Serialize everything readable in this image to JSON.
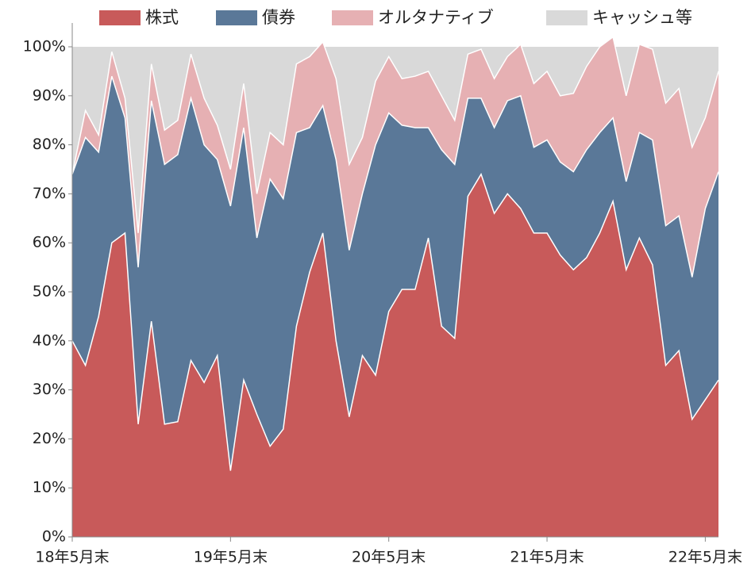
{
  "chart_data": {
    "type": "stacked_area",
    "categories": [
      "18年5月末",
      null,
      null,
      null,
      null,
      null,
      null,
      null,
      null,
      null,
      null,
      null,
      "19年5月末",
      null,
      null,
      null,
      null,
      null,
      null,
      null,
      null,
      null,
      null,
      null,
      "20年5月末",
      null,
      null,
      null,
      null,
      null,
      null,
      null,
      null,
      null,
      null,
      null,
      "21年5月末",
      null,
      null,
      null,
      null,
      null,
      null,
      null,
      null,
      null,
      null,
      null,
      "22年5月末",
      null
    ],
    "series": [
      {
        "name": "株式",
        "color": "#c85a5a",
        "values": [
          40,
          35,
          45,
          60,
          62,
          23,
          44,
          23,
          23.5,
          36,
          31.5,
          37,
          13.5,
          32,
          25,
          18.5,
          22,
          43,
          54,
          62,
          40,
          24.5,
          37,
          33,
          46,
          50.5,
          50.5,
          61,
          43,
          40.5,
          69.5,
          74,
          66,
          70,
          67,
          62,
          62,
          57.5,
          54.5,
          57,
          62,
          68.5,
          54.5,
          61,
          55.5,
          35,
          38,
          24,
          28,
          32
        ]
      },
      {
        "name": "債券",
        "color": "#5a7898",
        "values": [
          34,
          46.5,
          33.5,
          34,
          23.5,
          32,
          45,
          53,
          54.5,
          53.5,
          48.5,
          40,
          54,
          51.5,
          36,
          54.5,
          47,
          39.5,
          29.5,
          26,
          37,
          34,
          33,
          47,
          40.5,
          33.5,
          33,
          22.5,
          36,
          35.5,
          20,
          15.5,
          17.5,
          19,
          23,
          17.5,
          19,
          19,
          20,
          22,
          20.5,
          17,
          18,
          21.5,
          25.5,
          28.5,
          27.5,
          29,
          39,
          42.5
        ]
      },
      {
        "name": "オルタナティブ",
        "color": "#e6b0b3",
        "values": [
          0,
          5.5,
          3.5,
          5,
          4,
          7,
          7.5,
          7,
          7,
          9,
          9.5,
          7,
          7.5,
          9,
          9,
          9.5,
          11,
          14,
          14.5,
          13,
          16.5,
          17.5,
          11.5,
          13,
          11.5,
          9.5,
          10.5,
          11.5,
          11,
          9,
          9,
          10,
          10,
          9,
          10.5,
          13,
          14,
          13.5,
          16,
          17,
          17.5,
          16.5,
          17.5,
          18,
          18.5,
          25,
          26,
          26.5,
          18.5,
          20.5
        ]
      },
      {
        "name": "キャッシュ等",
        "color": "#d9d9d9",
        "values": [
          26,
          13,
          18,
          1,
          10.5,
          38,
          3.5,
          17,
          15,
          1.5,
          10.5,
          16,
          25,
          7.5,
          30,
          17.5,
          20,
          3.5,
          2,
          -1,
          6.5,
          24,
          18.5,
          7,
          2,
          6.5,
          6,
          5,
          10,
          15,
          1.5,
          0.5,
          6.5,
          2,
          -0.5,
          7.5,
          5,
          10,
          9.5,
          4,
          0,
          -2,
          10,
          -0.5,
          0.5,
          11.5,
          8.5,
          20.5,
          14.5,
          5
        ]
      }
    ],
    "ylim": [
      0,
      100
    ],
    "yticks": [
      {
        "value": 0,
        "label": "0%"
      },
      {
        "value": 10,
        "label": "10%"
      },
      {
        "value": 20,
        "label": "20%"
      },
      {
        "value": 30,
        "label": "30%"
      },
      {
        "value": 40,
        "label": "40%"
      },
      {
        "value": 50,
        "label": "50%"
      },
      {
        "value": 60,
        "label": "60%"
      },
      {
        "value": 70,
        "label": "70%"
      },
      {
        "value": 80,
        "label": "80%"
      },
      {
        "value": 90,
        "label": "90%"
      },
      {
        "value": 100,
        "label": "100%"
      }
    ],
    "legend": "top"
  }
}
